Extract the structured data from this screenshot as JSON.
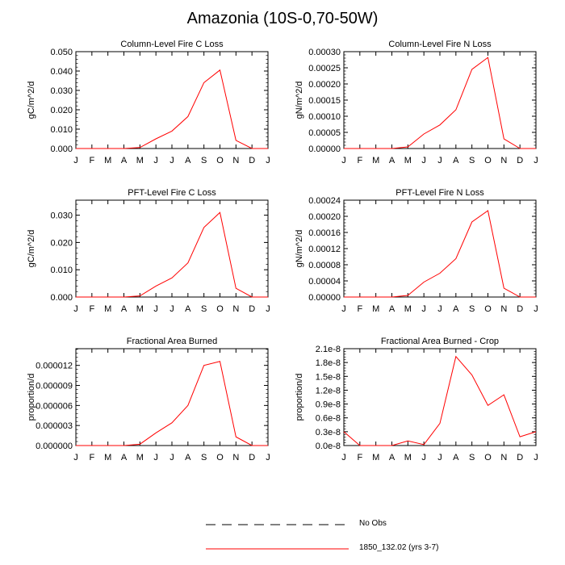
{
  "main_title": "Amazonia (10S-0,70-50W)",
  "month_labels": [
    "J",
    "F",
    "M",
    "A",
    "M",
    "J",
    "J",
    "A",
    "S",
    "O",
    "N",
    "D",
    "J"
  ],
  "legend": {
    "no_obs_label": "No Obs",
    "model_label": "1850_132.02 (yrs 3-7)",
    "model_color": "#ff0000"
  },
  "chart_data": [
    {
      "type": "line",
      "title": "Column-Level Fire C Loss",
      "ylabel": "gC/m^2/d",
      "ylim": [
        0,
        0.05
      ],
      "yticks": [
        "0.000",
        "0.010",
        "0.020",
        "0.030",
        "0.040",
        "0.050"
      ],
      "x": [
        "J",
        "F",
        "M",
        "A",
        "M",
        "J",
        "J",
        "A",
        "S",
        "O",
        "N",
        "D",
        "J"
      ],
      "series": [
        {
          "name": "1850_132.02 (yrs 3-7)",
          "values": [
            0,
            0,
            0,
            0,
            0.0005,
            0.005,
            0.009,
            0.0165,
            0.034,
            0.0405,
            0.0042,
            0,
            0
          ]
        }
      ]
    },
    {
      "type": "line",
      "title": "Column-Level Fire N Loss",
      "ylabel": "gN/m^2/d",
      "ylim": [
        0,
        0.0003
      ],
      "yticks": [
        "0.00000",
        "0.00005",
        "0.00010",
        "0.00015",
        "0.00020",
        "0.00025",
        "0.00030"
      ],
      "x": [
        "J",
        "F",
        "M",
        "A",
        "M",
        "J",
        "J",
        "A",
        "S",
        "O",
        "N",
        "D",
        "J"
      ],
      "series": [
        {
          "name": "1850_132.02 (yrs 3-7)",
          "values": [
            0,
            0,
            0,
            0,
            5e-06,
            4.5e-05,
            7.3e-05,
            0.00012,
            0.000245,
            0.000282,
            3e-05,
            0,
            0
          ]
        }
      ]
    },
    {
      "type": "line",
      "title": "PFT-Level Fire C Loss",
      "ylabel": "gC/m^2/d",
      "ylim": [
        0,
        0.0355
      ],
      "yticks": [
        "0.000",
        "0.010",
        "0.020",
        "0.030"
      ],
      "yticks_values": [
        0,
        0.01,
        0.02,
        0.03
      ],
      "x": [
        "J",
        "F",
        "M",
        "A",
        "M",
        "J",
        "J",
        "A",
        "S",
        "O",
        "N",
        "D",
        "J"
      ],
      "series": [
        {
          "name": "1850_132.02 (yrs 3-7)",
          "values": [
            0,
            0,
            0,
            0,
            0.0004,
            0.004,
            0.007,
            0.0125,
            0.0255,
            0.031,
            0.0032,
            0,
            0
          ]
        }
      ]
    },
    {
      "type": "line",
      "title": "PFT-Level Fire N Loss",
      "ylabel": "gN/m^2/d",
      "ylim": [
        0,
        0.00024
      ],
      "yticks": [
        "0.00000",
        "0.00004",
        "0.00008",
        "0.00012",
        "0.00016",
        "0.00020",
        "0.00024"
      ],
      "x": [
        "J",
        "F",
        "M",
        "A",
        "M",
        "J",
        "J",
        "A",
        "S",
        "O",
        "N",
        "D",
        "J"
      ],
      "series": [
        {
          "name": "1850_132.02 (yrs 3-7)",
          "values": [
            0,
            0,
            0,
            0,
            4e-06,
            3.7e-05,
            5.9e-05,
            9.5e-05,
            0.000186,
            0.000214,
            2.2e-05,
            0,
            0
          ]
        }
      ]
    },
    {
      "type": "line",
      "title": "Fractional Area Burned",
      "ylabel": "proportion/d",
      "ylim": [
        0,
        1.45e-05
      ],
      "yticks": [
        "0.000000",
        "0.000003",
        "0.000006",
        "0.000009",
        "0.000012"
      ],
      "yticks_values": [
        0,
        3e-06,
        6e-06,
        9e-06,
        1.2e-05
      ],
      "x": [
        "J",
        "F",
        "M",
        "A",
        "M",
        "J",
        "J",
        "A",
        "S",
        "O",
        "N",
        "D",
        "J"
      ],
      "series": [
        {
          "name": "1850_132.02 (yrs 3-7)",
          "values": [
            0,
            0,
            0,
            0,
            2e-07,
            1.9e-06,
            3.4e-06,
            6e-06,
            1.2e-05,
            1.26e-05,
            1.3e-06,
            0,
            0
          ]
        }
      ]
    },
    {
      "type": "line",
      "title": "Fractional Area Burned - Crop",
      "ylabel": "proportion/d",
      "ylim": [
        0,
        2.1e-08
      ],
      "yticks": [
        "0.0e-8",
        "0.3e-8",
        "0.6e-8",
        "0.9e-8",
        "1.2e-8",
        "1.5e-8",
        "1.8e-8",
        "2.1e-8"
      ],
      "x": [
        "J",
        "F",
        "M",
        "A",
        "M",
        "J",
        "J",
        "A",
        "S",
        "O",
        "N",
        "D",
        "J"
      ],
      "series": [
        {
          "name": "1850_132.02 (yrs 3-7)",
          "values": [
            3e-09,
            0,
            0,
            0,
            1e-09,
            2e-10,
            4.8e-09,
            1.93e-08,
            1.53e-08,
            8.7e-09,
            1.1e-08,
            1.9e-09,
            3e-09
          ]
        }
      ]
    }
  ]
}
